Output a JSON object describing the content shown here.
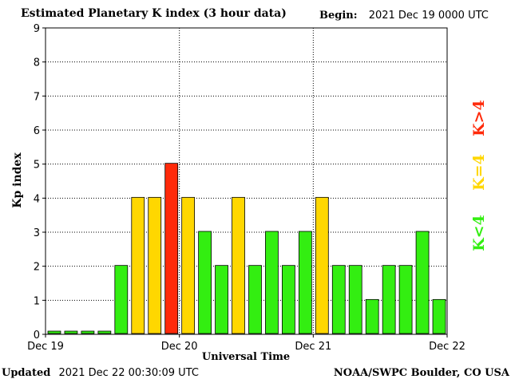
{
  "header": {
    "title": "Estimated Planetary K index (3 hour data)",
    "begin_label": "Begin:",
    "begin_value": "2021 Dec 19 0000 UTC"
  },
  "footer": {
    "updated_label": "Updated",
    "updated_value": "2021 Dec 22 00:30:09 UTC",
    "source": "NOAA/SWPC Boulder, CO USA"
  },
  "legend": [
    {
      "label": "K<4",
      "color": "#33ee11"
    },
    {
      "label": "K=4",
      "color": "#ffd700"
    },
    {
      "label": "K>4",
      "color": "#ff2a0a"
    }
  ],
  "chart_data": {
    "type": "bar",
    "title": "Estimated Planetary K index (3 hour data)",
    "xlabel": "Universal Time",
    "ylabel": "Kp index",
    "ylim": [
      0,
      9
    ],
    "yticks": [
      0,
      1,
      2,
      3,
      4,
      5,
      6,
      7,
      8,
      9
    ],
    "x_tick_labels": [
      "Dec 19",
      "Dec 20",
      "Dec 21",
      "Dec 22"
    ],
    "grid": true,
    "bar_interval_hours": 3,
    "values": [
      0,
      0,
      0,
      0,
      2,
      4,
      4,
      5,
      4,
      3,
      2,
      4,
      2,
      3,
      2,
      3,
      4,
      2,
      2,
      1,
      2,
      2,
      3,
      1
    ],
    "colors": {
      "below": "#33ee11",
      "equal": "#ffd700",
      "above": "#ff2a0a"
    }
  }
}
